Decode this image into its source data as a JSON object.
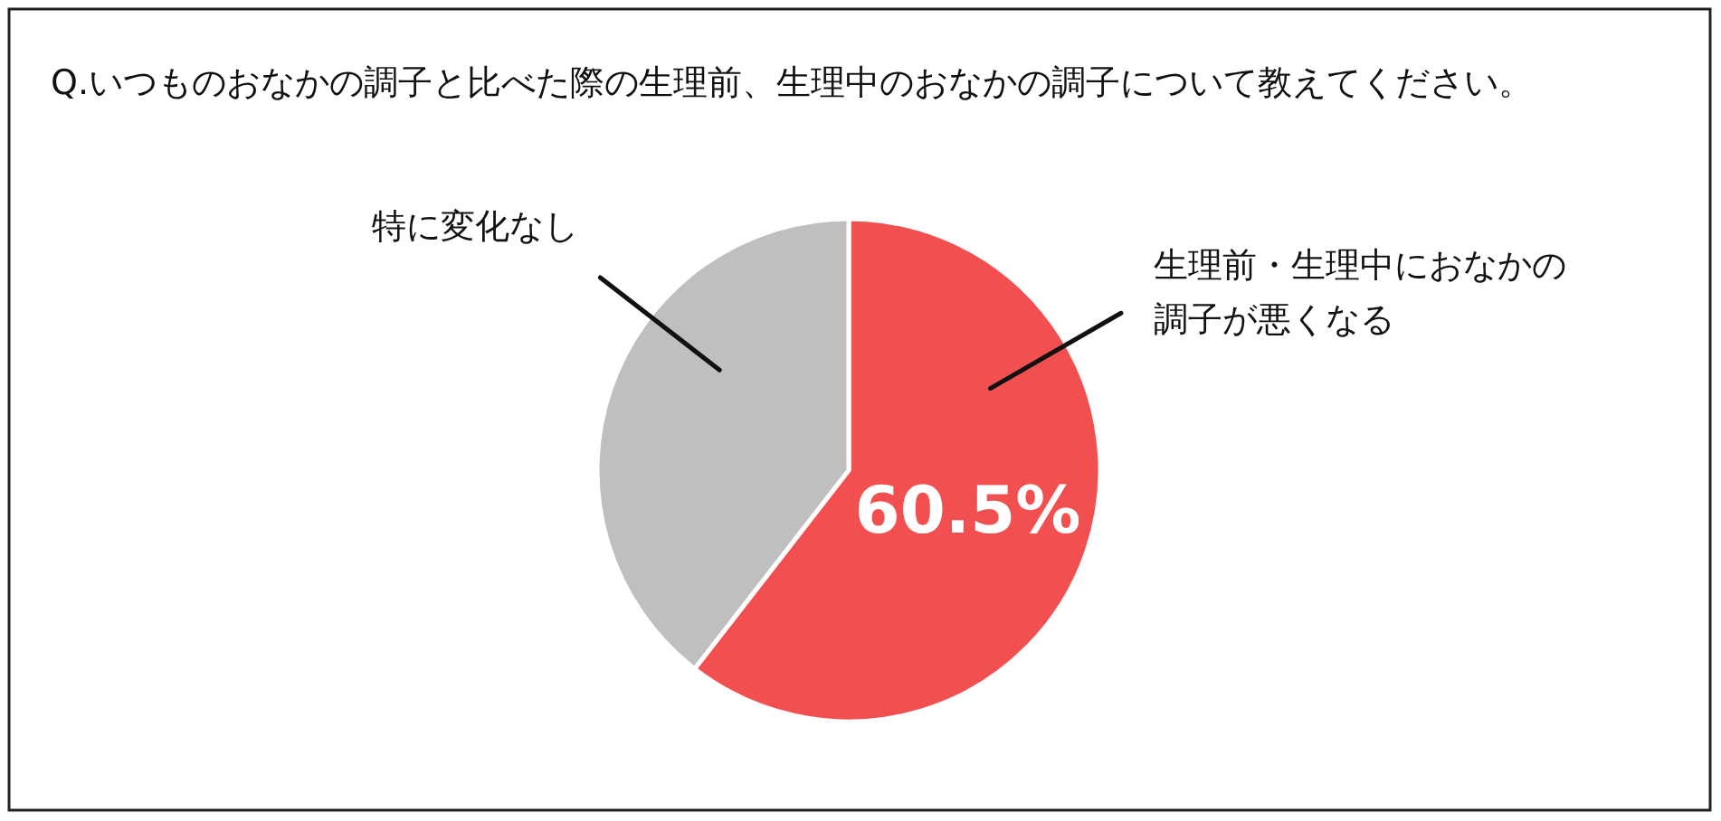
{
  "chart_data": {
    "type": "pie",
    "title": "Q.いつものおなかの調子と比べた際の生理前、生理中のおなかの調子について教えてください。",
    "categories": [
      "生理前・生理中におなかの調子が悪くなる",
      "特に変化なし"
    ],
    "values": [
      60.5,
      39.5
    ],
    "colors": [
      "#f25050",
      "#bfbfbf"
    ],
    "value_labels": [
      "60.5%",
      null
    ]
  }
}
